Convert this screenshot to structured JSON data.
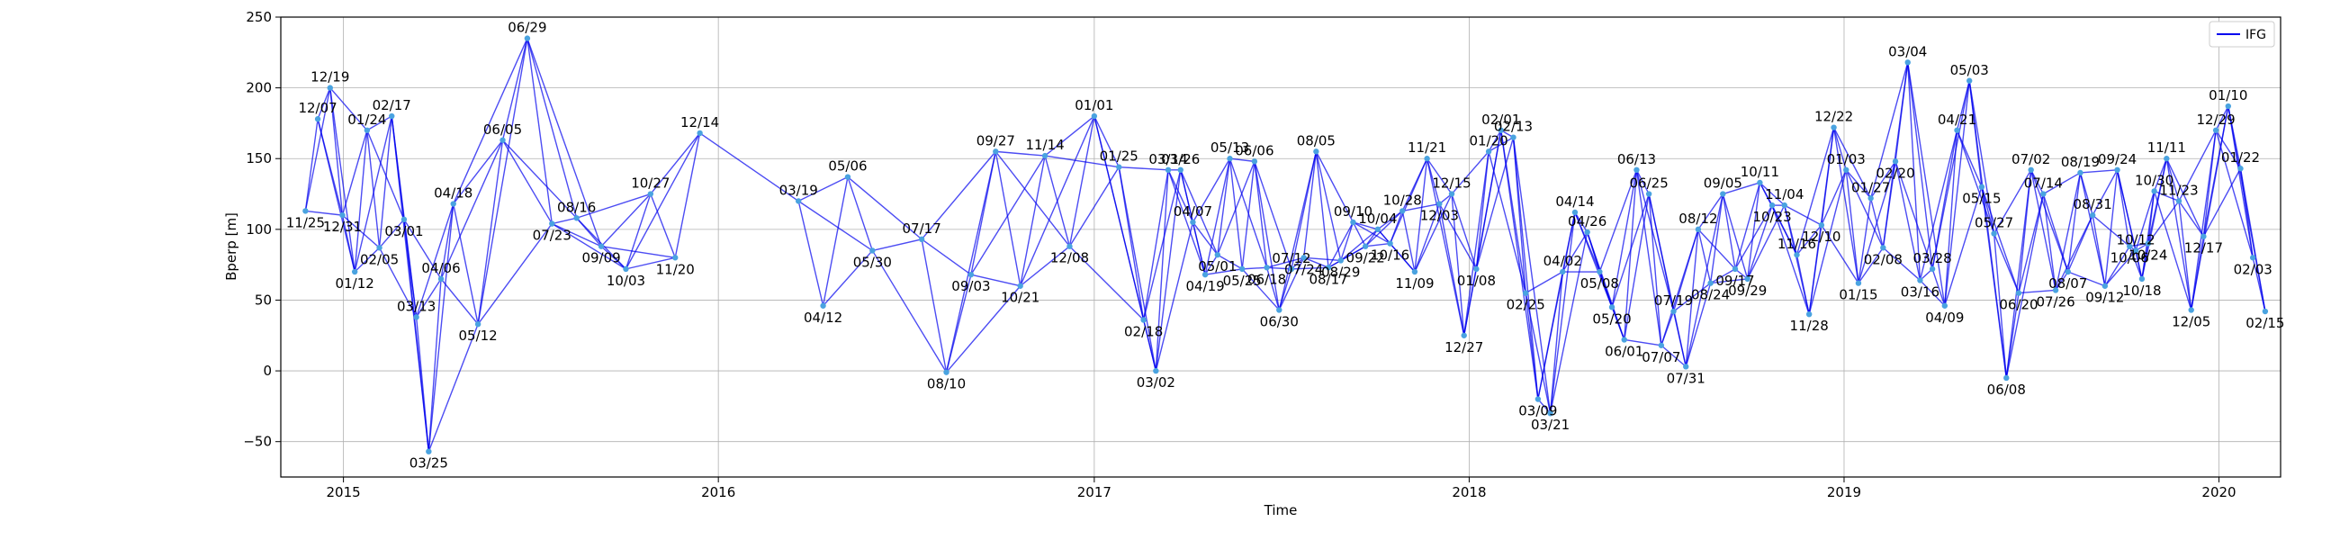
{
  "chart_data": {
    "type": "line",
    "title": "",
    "xlabel": "Time",
    "ylabel": "Bperp [m]",
    "xlim": [
      "2014-11-01",
      "2020-03-01"
    ],
    "ylim": [
      -75,
      250
    ],
    "x_ticks": [
      {
        "date": "2015-01-01",
        "label": "2015"
      },
      {
        "date": "2016-01-01",
        "label": "2016"
      },
      {
        "date": "2017-01-01",
        "label": "2017"
      },
      {
        "date": "2018-01-01",
        "label": "2018"
      },
      {
        "date": "2019-01-01",
        "label": "2019"
      },
      {
        "date": "2020-01-01",
        "label": "2020"
      }
    ],
    "y_ticks": [
      -50,
      0,
      50,
      100,
      150,
      200,
      250
    ],
    "y_tick_labels": [
      "−50",
      "0",
      "50",
      "100",
      "150",
      "200",
      "250"
    ],
    "grid": true,
    "legend": {
      "position": "top-right",
      "entries": [
        {
          "label": "IFG",
          "color": "#0000ee"
        }
      ]
    },
    "line_color": "#0000ee",
    "point_color": "#4aa3e0",
    "acquisitions": [
      {
        "date": "2014-11-25",
        "label": "11/25",
        "bperp": 113
      },
      {
        "date": "2014-12-07",
        "label": "12/07",
        "bperp": 178
      },
      {
        "date": "2014-12-19",
        "label": "12/19",
        "bperp": 200
      },
      {
        "date": "2014-12-31",
        "label": "12/31",
        "bperp": 110
      },
      {
        "date": "2015-01-12",
        "label": "01/12",
        "bperp": 70
      },
      {
        "date": "2015-01-24",
        "label": "01/24",
        "bperp": 170
      },
      {
        "date": "2015-02-05",
        "label": "02/05",
        "bperp": 87
      },
      {
        "date": "2015-02-17",
        "label": "02/17",
        "bperp": 180
      },
      {
        "date": "2015-03-01",
        "label": "03/01",
        "bperp": 107
      },
      {
        "date": "2015-03-13",
        "label": "03/13",
        "bperp": 38
      },
      {
        "date": "2015-03-25",
        "label": "03/25",
        "bperp": -57
      },
      {
        "date": "2015-04-06",
        "label": "04/06",
        "bperp": 65
      },
      {
        "date": "2015-04-18",
        "label": "04/18",
        "bperp": 118
      },
      {
        "date": "2015-05-12",
        "label": "05/12",
        "bperp": 33
      },
      {
        "date": "2015-06-05",
        "label": "06/05",
        "bperp": 163
      },
      {
        "date": "2015-06-29",
        "label": "06/29",
        "bperp": 235
      },
      {
        "date": "2015-07-23",
        "label": "07/23",
        "bperp": 104
      },
      {
        "date": "2015-08-16",
        "label": "08/16",
        "bperp": 108
      },
      {
        "date": "2015-09-09",
        "label": "09/09",
        "bperp": 88
      },
      {
        "date": "2015-10-03",
        "label": "10/03",
        "bperp": 72
      },
      {
        "date": "2015-10-27",
        "label": "10/27",
        "bperp": 125
      },
      {
        "date": "2015-11-20",
        "label": "11/20",
        "bperp": 80
      },
      {
        "date": "2015-12-14",
        "label": "12/14",
        "bperp": 168
      },
      {
        "date": "2016-03-19",
        "label": "03/19",
        "bperp": 120
      },
      {
        "date": "2016-04-12",
        "label": "04/12",
        "bperp": 46
      },
      {
        "date": "2016-05-06",
        "label": "05/06",
        "bperp": 137
      },
      {
        "date": "2016-05-30",
        "label": "05/30",
        "bperp": 85
      },
      {
        "date": "2016-07-17",
        "label": "07/17",
        "bperp": 93
      },
      {
        "date": "2016-08-10",
        "label": "08/10",
        "bperp": -1
      },
      {
        "date": "2016-09-03",
        "label": "09/03",
        "bperp": 68
      },
      {
        "date": "2016-09-27",
        "label": "09/27",
        "bperp": 155
      },
      {
        "date": "2016-10-21",
        "label": "10/21",
        "bperp": 60
      },
      {
        "date": "2016-11-14",
        "label": "11/14",
        "bperp": 152
      },
      {
        "date": "2016-12-08",
        "label": "12/08",
        "bperp": 88
      },
      {
        "date": "2017-01-01",
        "label": "01/01",
        "bperp": 180
      },
      {
        "date": "2017-01-25",
        "label": "01/25",
        "bperp": 144
      },
      {
        "date": "2017-02-18",
        "label": "02/18",
        "bperp": 36
      },
      {
        "date": "2017-03-02",
        "label": "03/02",
        "bperp": 0
      },
      {
        "date": "2017-03-14",
        "label": "03/14",
        "bperp": 142
      },
      {
        "date": "2017-03-26",
        "label": "03/26",
        "bperp": 142
      },
      {
        "date": "2017-04-07",
        "label": "04/07",
        "bperp": 105
      },
      {
        "date": "2017-04-19",
        "label": "04/19",
        "bperp": 68
      },
      {
        "date": "2017-05-01",
        "label": "05/01",
        "bperp": 82
      },
      {
        "date": "2017-05-13",
        "label": "05/13",
        "bperp": 150
      },
      {
        "date": "2017-05-25",
        "label": "05/25",
        "bperp": 72
      },
      {
        "date": "2017-06-06",
        "label": "06/06",
        "bperp": 148
      },
      {
        "date": "2017-06-18",
        "label": "06/18",
        "bperp": 73
      },
      {
        "date": "2017-06-30",
        "label": "06/30",
        "bperp": 43
      },
      {
        "date": "2017-07-12",
        "label": "07/12",
        "bperp": 72
      },
      {
        "date": "2017-07-24",
        "label": "07/24",
        "bperp": 80
      },
      {
        "date": "2017-08-05",
        "label": "08/05",
        "bperp": 155
      },
      {
        "date": "2017-08-17",
        "label": "08/17",
        "bperp": 73
      },
      {
        "date": "2017-08-29",
        "label": "08/29",
        "bperp": 78
      },
      {
        "date": "2017-09-10",
        "label": "09/10",
        "bperp": 105
      },
      {
        "date": "2017-09-22",
        "label": "09/22",
        "bperp": 88
      },
      {
        "date": "2017-10-04",
        "label": "10/04",
        "bperp": 100
      },
      {
        "date": "2017-10-16",
        "label": "10/16",
        "bperp": 90
      },
      {
        "date": "2017-10-28",
        "label": "10/28",
        "bperp": 113
      },
      {
        "date": "2017-11-09",
        "label": "11/09",
        "bperp": 70
      },
      {
        "date": "2017-11-21",
        "label": "11/21",
        "bperp": 150
      },
      {
        "date": "2017-12-03",
        "label": "12/03",
        "bperp": 118
      },
      {
        "date": "2017-12-15",
        "label": "12/15",
        "bperp": 125
      },
      {
        "date": "2017-12-27",
        "label": "12/27",
        "bperp": 25
      },
      {
        "date": "2018-01-08",
        "label": "01/08",
        "bperp": 72
      },
      {
        "date": "2018-01-20",
        "label": "01/20",
        "bperp": 155
      },
      {
        "date": "2018-02-01",
        "label": "02/01",
        "bperp": 170
      },
      {
        "date": "2018-02-13",
        "label": "02/13",
        "bperp": 165
      },
      {
        "date": "2018-02-25",
        "label": "02/25",
        "bperp": 55
      },
      {
        "date": "2018-03-09",
        "label": "03/09",
        "bperp": -20
      },
      {
        "date": "2018-03-21",
        "label": "03/21",
        "bperp": -30
      },
      {
        "date": "2018-04-02",
        "label": "04/02",
        "bperp": 70
      },
      {
        "date": "2018-04-14",
        "label": "04/14",
        "bperp": 112
      },
      {
        "date": "2018-04-26",
        "label": "04/26",
        "bperp": 98
      },
      {
        "date": "2018-05-08",
        "label": "05/08",
        "bperp": 70
      },
      {
        "date": "2018-05-20",
        "label": "05/20",
        "bperp": 45
      },
      {
        "date": "2018-06-01",
        "label": "06/01",
        "bperp": 22
      },
      {
        "date": "2018-06-13",
        "label": "06/13",
        "bperp": 142
      },
      {
        "date": "2018-06-25",
        "label": "06/25",
        "bperp": 125
      },
      {
        "date": "2018-07-07",
        "label": "07/07",
        "bperp": 18
      },
      {
        "date": "2018-07-19",
        "label": "07/19",
        "bperp": 42
      },
      {
        "date": "2018-07-31",
        "label": "07/31",
        "bperp": 3
      },
      {
        "date": "2018-08-12",
        "label": "08/12",
        "bperp": 100
      },
      {
        "date": "2018-08-24",
        "label": "08/24",
        "bperp": 62
      },
      {
        "date": "2018-09-05",
        "label": "09/05",
        "bperp": 125
      },
      {
        "date": "2018-09-17",
        "label": "09/17",
        "bperp": 72
      },
      {
        "date": "2018-09-29",
        "label": "09/29",
        "bperp": 65
      },
      {
        "date": "2018-10-11",
        "label": "10/11",
        "bperp": 133
      },
      {
        "date": "2018-10-23",
        "label": "10/23",
        "bperp": 117
      },
      {
        "date": "2018-11-04",
        "label": "11/04",
        "bperp": 117
      },
      {
        "date": "2018-11-16",
        "label": "11/16",
        "bperp": 82
      },
      {
        "date": "2018-11-28",
        "label": "11/28",
        "bperp": 40
      },
      {
        "date": "2018-12-10",
        "label": "12/10",
        "bperp": 103
      },
      {
        "date": "2018-12-22",
        "label": "12/22",
        "bperp": 172
      },
      {
        "date": "2019-01-03",
        "label": "01/03",
        "bperp": 142
      },
      {
        "date": "2019-01-15",
        "label": "01/15",
        "bperp": 62
      },
      {
        "date": "2019-01-27",
        "label": "01/27",
        "bperp": 122
      },
      {
        "date": "2019-02-08",
        "label": "02/08",
        "bperp": 87
      },
      {
        "date": "2019-02-20",
        "label": "02/20",
        "bperp": 148
      },
      {
        "date": "2019-03-04",
        "label": "03/04",
        "bperp": 218
      },
      {
        "date": "2019-03-16",
        "label": "03/16",
        "bperp": 64
      },
      {
        "date": "2019-03-28",
        "label": "03/28",
        "bperp": 72
      },
      {
        "date": "2019-04-09",
        "label": "04/09",
        "bperp": 46
      },
      {
        "date": "2019-04-21",
        "label": "04/21",
        "bperp": 170
      },
      {
        "date": "2019-05-03",
        "label": "05/03",
        "bperp": 205
      },
      {
        "date": "2019-05-15",
        "label": "05/15",
        "bperp": 130
      },
      {
        "date": "2019-05-27",
        "label": "05/27",
        "bperp": 97
      },
      {
        "date": "2019-06-08",
        "label": "06/08",
        "bperp": -5
      },
      {
        "date": "2019-06-20",
        "label": "06/20",
        "bperp": 55
      },
      {
        "date": "2019-07-02",
        "label": "07/02",
        "bperp": 142
      },
      {
        "date": "2019-07-14",
        "label": "07/14",
        "bperp": 125
      },
      {
        "date": "2019-07-26",
        "label": "07/26",
        "bperp": 57
      },
      {
        "date": "2019-08-07",
        "label": "08/07",
        "bperp": 70
      },
      {
        "date": "2019-08-19",
        "label": "08/19",
        "bperp": 140
      },
      {
        "date": "2019-08-31",
        "label": "08/31",
        "bperp": 110
      },
      {
        "date": "2019-09-12",
        "label": "09/12",
        "bperp": 60
      },
      {
        "date": "2019-09-24",
        "label": "09/24",
        "bperp": 142
      },
      {
        "date": "2019-10-06",
        "label": "10/06",
        "bperp": 88
      },
      {
        "date": "2019-10-12",
        "label": "10/12",
        "bperp": 85
      },
      {
        "date": "2019-10-18",
        "label": "10/18",
        "bperp": 65
      },
      {
        "date": "2019-10-24",
        "label": "10/24",
        "bperp": 90
      },
      {
        "date": "2019-10-30",
        "label": "10/30",
        "bperp": 127
      },
      {
        "date": "2019-11-11",
        "label": "11/11",
        "bperp": 150
      },
      {
        "date": "2019-11-23",
        "label": "11/23",
        "bperp": 120
      },
      {
        "date": "2019-12-05",
        "label": "12/05",
        "bperp": 43
      },
      {
        "date": "2019-12-17",
        "label": "12/17",
        "bperp": 95
      },
      {
        "date": "2019-12-29",
        "label": "12/29",
        "bperp": 170
      },
      {
        "date": "2020-01-10",
        "label": "01/10",
        "bperp": 187
      },
      {
        "date": "2020-01-22",
        "label": "01/22",
        "bperp": 143
      },
      {
        "date": "2020-02-03",
        "label": "02/03",
        "bperp": 80
      },
      {
        "date": "2020-02-15",
        "label": "02/15",
        "bperp": 42
      }
    ]
  }
}
